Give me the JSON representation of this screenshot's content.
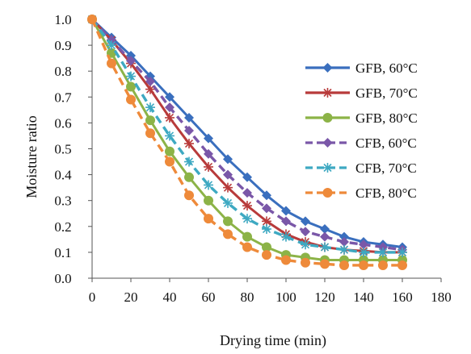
{
  "chart_data": {
    "type": "line",
    "title": "",
    "xlabel": "Drying time (min)",
    "ylabel": "Moisture ratio",
    "xlim": [
      0,
      180
    ],
    "ylim": [
      0.0,
      1.0
    ],
    "x_ticks": [
      0,
      20,
      40,
      60,
      80,
      100,
      120,
      140,
      160,
      180
    ],
    "y_ticks": [
      "0.0",
      "0.1",
      "0.2",
      "0.3",
      "0.4",
      "0.5",
      "0.6",
      "0.7",
      "0.8",
      "0.9",
      "1.0"
    ],
    "grid": false,
    "legend_position": "right",
    "series": [
      {
        "name": "GFB, 60°C",
        "color": "#3a6fbe",
        "marker": "diamond",
        "line": "solid",
        "x": [
          0,
          10,
          20,
          30,
          40,
          50,
          60,
          70,
          80,
          90,
          100,
          110,
          120,
          130,
          140,
          150,
          160
        ],
        "y": [
          1.0,
          0.93,
          0.86,
          0.78,
          0.7,
          0.62,
          0.54,
          0.46,
          0.39,
          0.32,
          0.26,
          0.22,
          0.19,
          0.16,
          0.14,
          0.13,
          0.12
        ]
      },
      {
        "name": "GFB, 70°C",
        "color": "#b83b3b",
        "marker": "asterisk",
        "line": "solid",
        "x": [
          0,
          10,
          20,
          30,
          40,
          50,
          60,
          70,
          80,
          90,
          100,
          110,
          120,
          130,
          140,
          150,
          160
        ],
        "y": [
          1.0,
          0.92,
          0.83,
          0.73,
          0.62,
          0.52,
          0.43,
          0.35,
          0.28,
          0.22,
          0.17,
          0.14,
          0.12,
          0.11,
          0.105,
          0.1,
          0.1
        ]
      },
      {
        "name": "GFB, 80°C",
        "color": "#8cb347",
        "marker": "circle",
        "line": "solid",
        "x": [
          0,
          10,
          20,
          30,
          40,
          50,
          60,
          70,
          80,
          90,
          100,
          110,
          120,
          130,
          140,
          150,
          160
        ],
        "y": [
          1.0,
          0.87,
          0.74,
          0.61,
          0.49,
          0.39,
          0.3,
          0.22,
          0.16,
          0.12,
          0.09,
          0.08,
          0.07,
          0.07,
          0.07,
          0.07,
          0.07
        ]
      },
      {
        "name": "CFB, 60°C",
        "color": "#7a57a8",
        "marker": "diamond",
        "line": "dashed",
        "x": [
          0,
          10,
          20,
          30,
          40,
          50,
          60,
          70,
          80,
          90,
          100,
          110,
          120,
          130,
          140,
          150,
          160
        ],
        "y": [
          1.0,
          0.92,
          0.84,
          0.76,
          0.66,
          0.57,
          0.48,
          0.4,
          0.33,
          0.27,
          0.22,
          0.18,
          0.16,
          0.14,
          0.13,
          0.12,
          0.11
        ]
      },
      {
        "name": "CFB, 70°C",
        "color": "#3ea9c2",
        "marker": "asterisk",
        "line": "dashed",
        "x": [
          0,
          10,
          20,
          30,
          40,
          50,
          60,
          70,
          80,
          90,
          100,
          110,
          120,
          130,
          140,
          150,
          160
        ],
        "y": [
          1.0,
          0.9,
          0.78,
          0.66,
          0.55,
          0.45,
          0.36,
          0.29,
          0.23,
          0.19,
          0.16,
          0.13,
          0.12,
          0.11,
          0.1,
          0.1,
          0.1
        ]
      },
      {
        "name": "CFB, 80°C",
        "color": "#ee8a3a",
        "marker": "circle",
        "line": "dashed",
        "x": [
          0,
          10,
          20,
          30,
          40,
          50,
          60,
          70,
          80,
          90,
          100,
          110,
          120,
          130,
          140,
          150,
          160
        ],
        "y": [
          1.0,
          0.83,
          0.69,
          0.56,
          0.45,
          0.32,
          0.23,
          0.17,
          0.12,
          0.09,
          0.07,
          0.06,
          0.055,
          0.05,
          0.05,
          0.05,
          0.05
        ]
      }
    ]
  }
}
